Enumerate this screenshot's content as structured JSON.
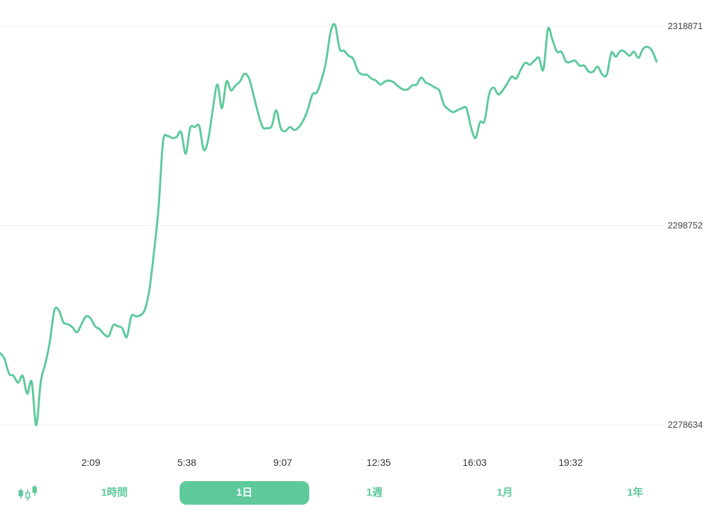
{
  "colors": {
    "line": "#5ec99a",
    "grid": "#eeeeee",
    "tab_active_bg": "#5ec99a"
  },
  "chart_data": {
    "type": "line",
    "y_ticks": [
      2318871,
      2298752,
      2278634
    ],
    "ylim": [
      2278634,
      2318871
    ],
    "x_ticks": [
      "2:09",
      "5:38",
      "9:07",
      "12:35",
      "16:03",
      "19:32"
    ],
    "series": [
      {
        "values": [
          2285900,
          2285300,
          2283800,
          2283600,
          2282900,
          2283600,
          2281800,
          2283000,
          2278600,
          2283000,
          2284800,
          2287000,
          2290200,
          2290200,
          2289000,
          2288800,
          2288500,
          2288000,
          2288800,
          2289600,
          2289400,
          2288600,
          2288300,
          2287800,
          2287600,
          2288700,
          2288600,
          2288400,
          2287500,
          2289600,
          2289600,
          2289700,
          2290300,
          2292300,
          2296100,
          2300500,
          2307200,
          2307800,
          2307600,
          2307700,
          2308200,
          2306000,
          2308600,
          2308700,
          2308800,
          2306400,
          2307500,
          2310500,
          2313000,
          2310600,
          2313300,
          2312400,
          2312900,
          2313300,
          2314100,
          2313600,
          2311900,
          2310100,
          2308700,
          2308600,
          2308800,
          2310400,
          2308600,
          2308300,
          2308700,
          2308400,
          2308700,
          2309400,
          2310500,
          2312000,
          2312200,
          2313500,
          2315300,
          2318300,
          2319000,
          2316600,
          2316400,
          2315900,
          2315600,
          2314400,
          2314000,
          2314000,
          2313600,
          2313400,
          2313000,
          2313300,
          2313400,
          2313200,
          2312800,
          2312500,
          2312500,
          2312900,
          2313000,
          2313700,
          2313200,
          2313000,
          2312700,
          2312400,
          2311000,
          2310500,
          2310200,
          2310400,
          2310600,
          2310600,
          2308700,
          2307600,
          2309200,
          2309300,
          2312000,
          2312700,
          2312000,
          2312400,
          2313100,
          2313800,
          2313600,
          2314500,
          2315200,
          2315000,
          2315400,
          2315700,
          2314500,
          2318600,
          2317500,
          2316300,
          2316300,
          2315300,
          2315300,
          2315400,
          2314900,
          2314900,
          2314300,
          2314300,
          2314800,
          2314000,
          2314000,
          2316200,
          2315800,
          2316400,
          2316300,
          2315900,
          2316300,
          2315700,
          2316600,
          2316800,
          2316400,
          2315300
        ]
      }
    ]
  },
  "tabs": [
    {
      "label": "1時間"
    },
    {
      "label": "1日"
    },
    {
      "label": "1週"
    },
    {
      "label": "1月"
    },
    {
      "label": "1年"
    }
  ],
  "icons": {
    "chart_type": "candlestick-icon"
  }
}
